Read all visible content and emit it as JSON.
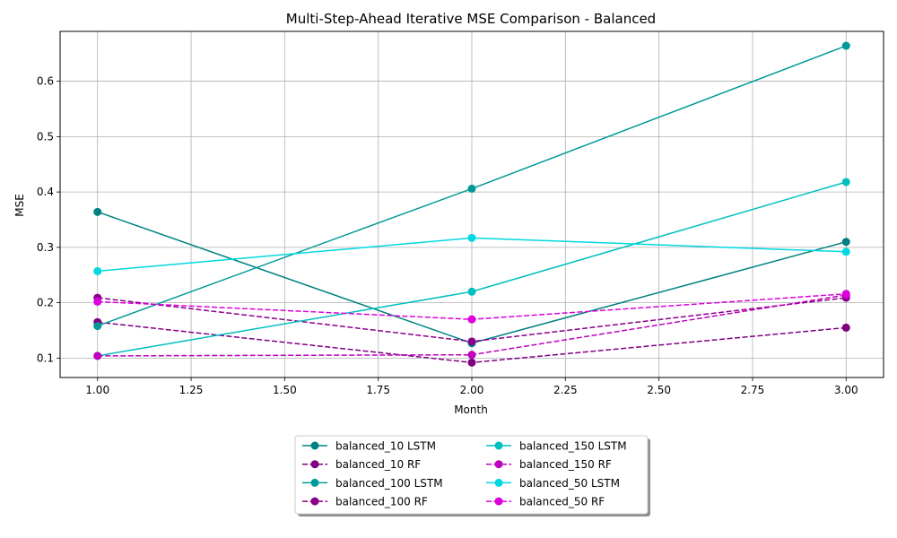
{
  "chart_data": {
    "type": "line",
    "title": "Multi-Step-Ahead Iterative MSE Comparison - Balanced",
    "xlabel": "Month",
    "ylabel": "MSE",
    "xlim": [
      0.9,
      3.1
    ],
    "ylim": [
      0.065,
      0.69
    ],
    "x_ticks": [
      "1.00",
      "1.25",
      "1.50",
      "1.75",
      "2.00",
      "2.25",
      "2.50",
      "2.75",
      "3.00"
    ],
    "x_tick_values": [
      1.0,
      1.25,
      1.5,
      1.75,
      2.0,
      2.25,
      2.5,
      2.75,
      3.0
    ],
    "y_ticks": [
      "0.1",
      "0.2",
      "0.3",
      "0.4",
      "0.5",
      "0.6"
    ],
    "y_tick_values": [
      0.1,
      0.2,
      0.3,
      0.4,
      0.5,
      0.6
    ],
    "grid": true,
    "legend_position": "bottom-center",
    "x": [
      1,
      2,
      3
    ],
    "series": [
      {
        "name": "balanced_10 LSTM",
        "values": [
          0.364,
          0.127,
          0.31
        ],
        "color": "#008080",
        "dashed": false
      },
      {
        "name": "balanced_10 RF",
        "values": [
          0.165,
          0.092,
          0.155
        ],
        "color": "#800080",
        "dashed": true
      },
      {
        "name": "balanced_100 LSTM",
        "values": [
          0.158,
          0.406,
          0.664
        ],
        "color": "#009999",
        "dashed": false
      },
      {
        "name": "balanced_100 RF",
        "values": [
          0.209,
          0.13,
          0.209
        ],
        "color": "#8b008b",
        "dashed": true
      },
      {
        "name": "balanced_150 LSTM",
        "values": [
          0.104,
          0.22,
          0.418
        ],
        "color": "#00bfbf",
        "dashed": false
      },
      {
        "name": "balanced_150 RF",
        "values": [
          0.104,
          0.106,
          0.214
        ],
        "color": "#bf00bf",
        "dashed": true
      },
      {
        "name": "balanced_50 LSTM",
        "values": [
          0.257,
          0.317,
          0.292
        ],
        "color": "#00d8e0",
        "dashed": false
      },
      {
        "name": "balanced_50 RF",
        "values": [
          0.202,
          0.17,
          0.216
        ],
        "color": "#dd00dd",
        "dashed": true
      }
    ]
  }
}
